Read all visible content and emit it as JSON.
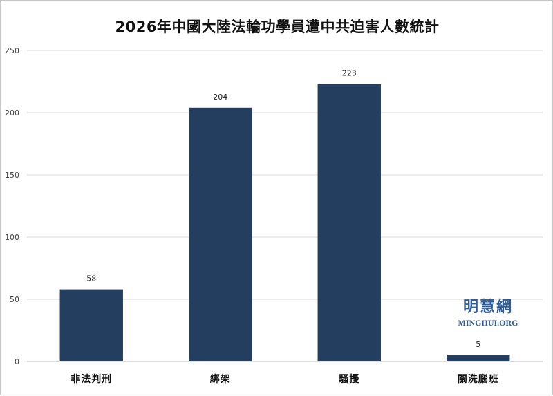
{
  "chart_data": {
    "type": "bar",
    "title": "2026年中國大陸法輪功學員遭中共迫害人數統計",
    "categories": [
      "非法判刑",
      "綁架",
      "騷擾",
      "關洗腦班"
    ],
    "values": [
      58,
      204,
      223,
      5
    ],
    "ylim": [
      0,
      250
    ],
    "yticks": [
      0,
      50,
      100,
      150,
      200,
      250
    ],
    "grid": true,
    "bar_color": "#233e5f"
  },
  "watermark": {
    "cn": "明慧網",
    "en": "MINGHUI.ORG"
  }
}
